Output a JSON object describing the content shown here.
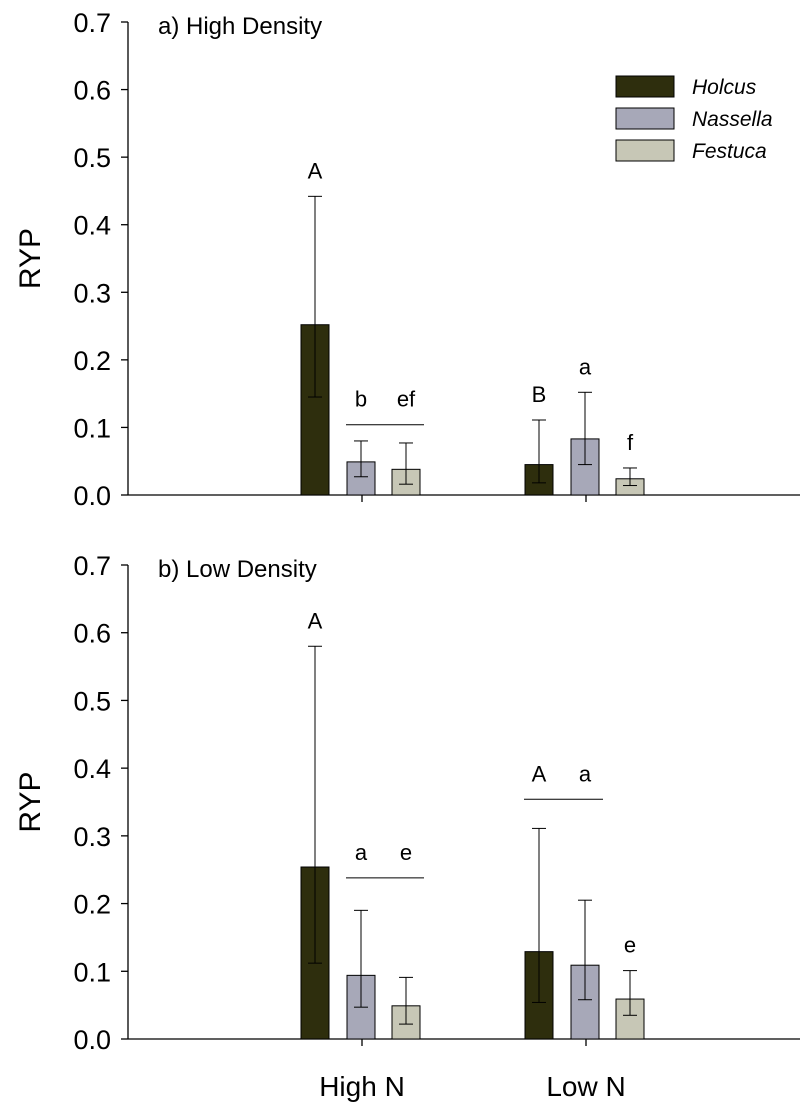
{
  "colors": {
    "holcus": "#2e2e0d",
    "nassella": "#a7a8b8",
    "festuca": "#c7c7b6"
  },
  "legend": [
    {
      "label": "Holcus",
      "color": "#2e2e0d"
    },
    {
      "label": "Nassella",
      "color": "#a7a8b8"
    },
    {
      "label": "Festuca",
      "color": "#c7c7b6"
    }
  ],
  "chart_data": [
    {
      "type": "bar",
      "title": "a) High Density",
      "ylabel": "RYP",
      "xlabel": "",
      "ylim": [
        0,
        0.7
      ],
      "yticks": [
        "0.0",
        "0.1",
        "0.2",
        "0.3",
        "0.4",
        "0.5",
        "0.6",
        "0.7"
      ],
      "categories": [
        "High N",
        "Low N"
      ],
      "series": [
        {
          "name": "Holcus",
          "values": [
            0.252,
            0.045
          ],
          "err_low": [
            0.145,
            0.018
          ],
          "err_high": [
            0.442,
            0.111
          ],
          "labels": [
            "A",
            "B"
          ]
        },
        {
          "name": "Nassella",
          "values": [
            0.049,
            0.083
          ],
          "err_low": [
            0.027,
            0.045
          ],
          "err_high": [
            0.08,
            0.152
          ],
          "labels": [
            "b",
            "a"
          ]
        },
        {
          "name": "Festuca",
          "values": [
            0.038,
            0.024
          ],
          "err_low": [
            0.016,
            0.014
          ],
          "err_high": [
            0.077,
            0.04
          ],
          "labels": [
            "ef",
            "f"
          ]
        }
      ],
      "group_lines": [
        {
          "category": 0,
          "from_series": 1,
          "to_series": 2,
          "level": 0.104
        }
      ]
    },
    {
      "type": "bar",
      "title": "b) Low Density",
      "ylabel": "RYP",
      "xlabel": "",
      "ylim": [
        0,
        0.7
      ],
      "yticks": [
        "0.0",
        "0.1",
        "0.2",
        "0.3",
        "0.4",
        "0.5",
        "0.6",
        "0.7"
      ],
      "categories": [
        "High N",
        "Low N"
      ],
      "series": [
        {
          "name": "Holcus",
          "values": [
            0.254,
            0.129
          ],
          "err_low": [
            0.112,
            0.054
          ],
          "err_high": [
            0.58,
            0.311
          ],
          "labels": [
            "A",
            "A"
          ]
        },
        {
          "name": "Nassella",
          "values": [
            0.094,
            0.109
          ],
          "err_low": [
            0.047,
            0.058
          ],
          "err_high": [
            0.19,
            0.205
          ],
          "labels": [
            "a",
            "a"
          ]
        },
        {
          "name": "Festuca",
          "values": [
            0.049,
            0.059
          ],
          "err_low": [
            0.022,
            0.035
          ],
          "err_high": [
            0.091,
            0.101
          ],
          "labels": [
            "e",
            "e"
          ]
        }
      ],
      "group_lines": [
        {
          "category": 0,
          "from_series": 1,
          "to_series": 2,
          "level": 0.238
        },
        {
          "category": 1,
          "from_series": 0,
          "to_series": 1,
          "level": 0.354
        }
      ]
    }
  ]
}
